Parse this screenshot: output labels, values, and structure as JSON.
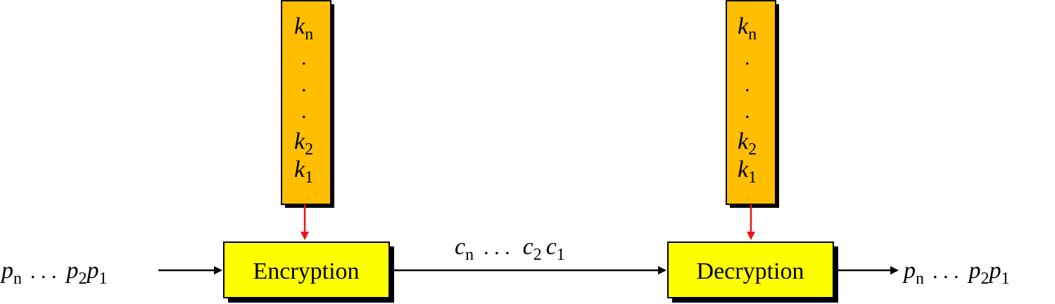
{
  "colors": {
    "key_fill": "#ffbe00",
    "box_fill": "#ffff00",
    "key_arrow": "#ee1111",
    "line": "#000000",
    "shadow": "#000000"
  },
  "encryption": {
    "label": "Encryption",
    "key_stack": {
      "top": "k",
      "top_sub": "n",
      "dots": ".",
      "k2": "k",
      "k2_sub": "2",
      "k1": "k",
      "k1_sub": "1"
    }
  },
  "decryption": {
    "label": "Decryption",
    "key_stack": {
      "top": "k",
      "top_sub": "n",
      "dots": ".",
      "k2": "k",
      "k2_sub": "2",
      "k1": "k",
      "k1_sub": "1"
    }
  },
  "plaintext_in": {
    "pn": "p",
    "pn_sub": "n",
    "dots": ". . .",
    "p2": "p",
    "p2_sub": "2",
    "p1": "p",
    "p1_sub": "1"
  },
  "ciphertext": {
    "cn": "c",
    "cn_sub": "n",
    "dots": ". . .",
    "c2": "c",
    "c2_sub": "2",
    "c1": "c",
    "c1_sub": "1"
  },
  "plaintext_out": {
    "pn": "p",
    "pn_sub": "n",
    "dots": ". . .",
    "p2": "p",
    "p2_sub": "2",
    "p1": "p",
    "p1_sub": "1"
  }
}
